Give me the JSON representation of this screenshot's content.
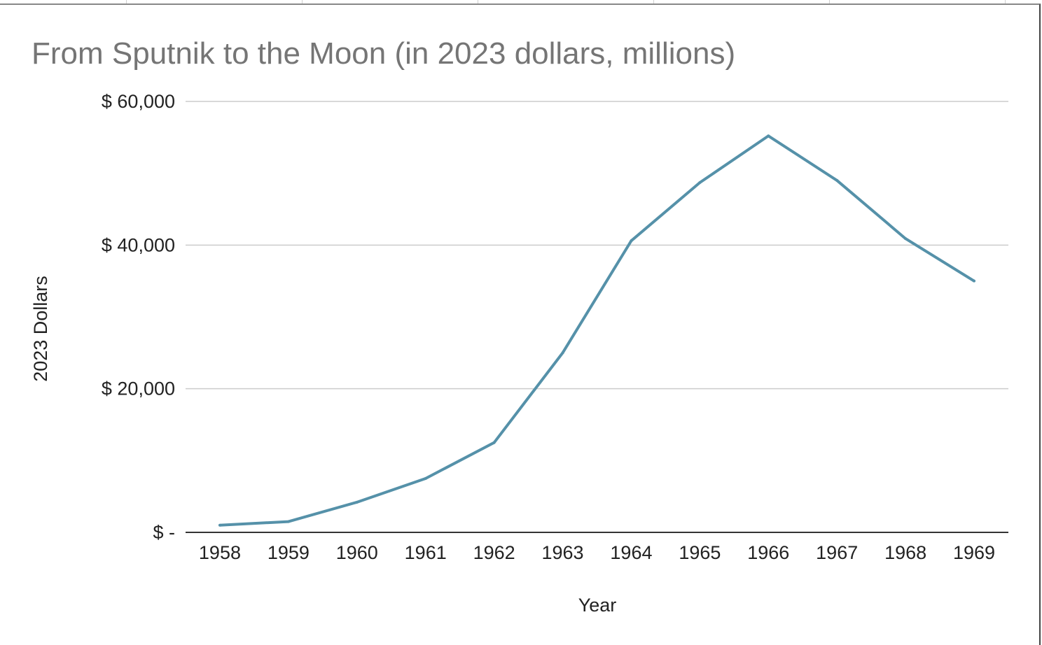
{
  "chart_data": {
    "type": "line",
    "title": "From Sputnik to the Moon (in 2023 dollars, millions)",
    "xlabel": "Year",
    "ylabel": "2023 Dollars",
    "categories": [
      "1958",
      "1959",
      "1960",
      "1961",
      "1962",
      "1963",
      "1964",
      "1965",
      "1966",
      "1967",
      "1968",
      "1969"
    ],
    "series": [
      {
        "name": "2023 Dollars",
        "values": [
          1000,
          1500,
          4200,
          7500,
          12500,
          25000,
          40600,
          48700,
          55200,
          49000,
          40900,
          35000
        ]
      }
    ],
    "ylim": [
      0,
      60000
    ],
    "yticks": [
      0,
      20000,
      40000,
      60000
    ],
    "ytick_labels": [
      "$ -",
      "$ 20,000",
      "$ 40,000",
      "$ 60,000"
    ],
    "grid": true,
    "legend": "none",
    "colors": {
      "line": "#5591a9",
      "grid": "#cccccc",
      "axis": "#333333"
    }
  }
}
